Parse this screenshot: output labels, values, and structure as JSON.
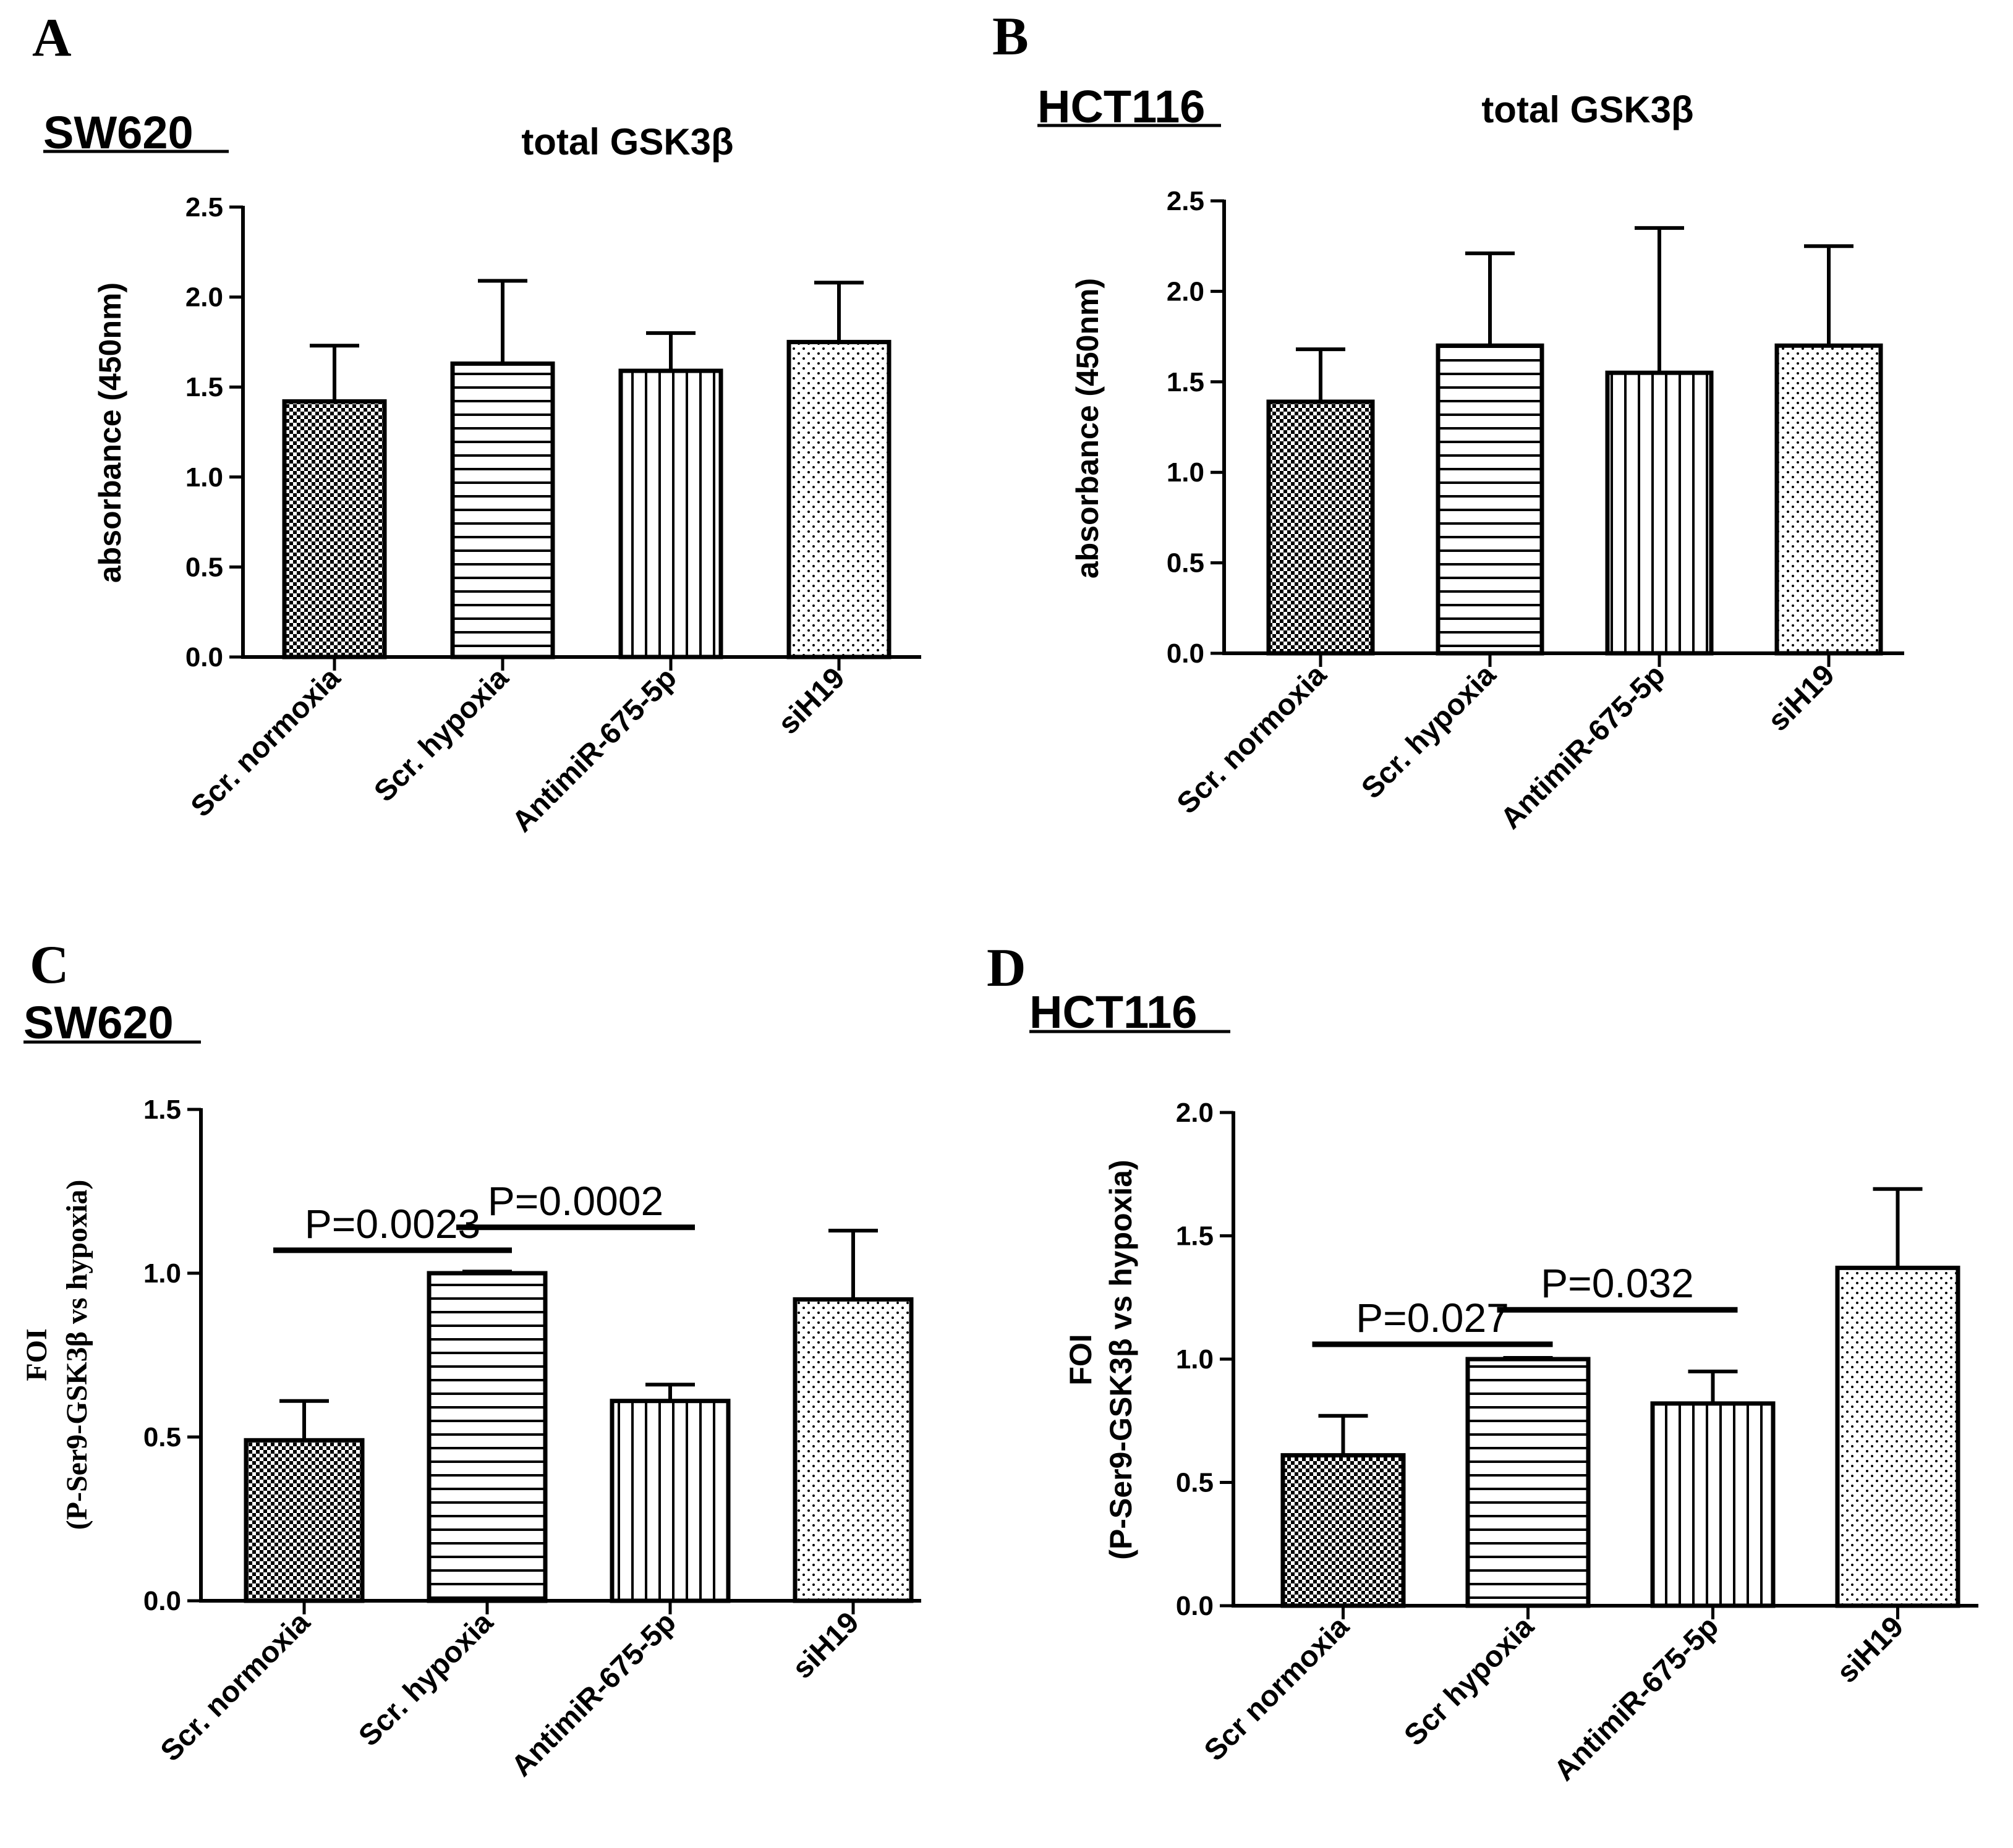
{
  "chart_data": [
    {
      "panel": "A",
      "type": "bar",
      "cell_line": "SW620",
      "title": "total GSK3β",
      "ylabel": "absorbance (450nm)",
      "ylim": [
        0,
        2.5
      ],
      "yticks": [
        "0.0",
        "0.5",
        "1.0",
        "1.5",
        "2.0",
        "2.5"
      ],
      "categories": [
        "Scr. normoxia",
        "Scr. hypoxia",
        "AntimiR-675-5p",
        "siH19"
      ],
      "values": [
        1.42,
        1.63,
        1.59,
        1.75
      ],
      "error_upper": [
        0.31,
        0.46,
        0.21,
        0.33
      ],
      "patterns": [
        "checker",
        "hlines",
        "vlines",
        "dots"
      ],
      "significance": []
    },
    {
      "panel": "B",
      "type": "bar",
      "cell_line": "HCT116",
      "title": "total GSK3β",
      "ylabel": "absorbance (450nm)",
      "ylim": [
        0,
        2.5
      ],
      "yticks": [
        "0.0",
        "0.5",
        "1.0",
        "1.5",
        "2.0",
        "2.5"
      ],
      "categories": [
        "Scr. normoxia",
        "Scr. hypoxia",
        "AntimiR-675-5p",
        "siH19"
      ],
      "values": [
        1.39,
        1.7,
        1.55,
        1.7
      ],
      "error_upper": [
        0.29,
        0.51,
        0.8,
        0.55
      ],
      "patterns": [
        "checker",
        "hlines",
        "vlines",
        "dots"
      ],
      "significance": []
    },
    {
      "panel": "C",
      "type": "bar",
      "cell_line": "SW620",
      "title": "",
      "ylabel_line1": "FOI",
      "ylabel_line2": "(P-Ser9-GSK3β vs hypoxia)",
      "ylim": [
        0,
        1.5
      ],
      "yticks": [
        "0.0",
        "0.5",
        "1.0",
        "1.5"
      ],
      "categories": [
        "Scr. normoxia",
        "Scr. hypoxia",
        "AntimiR-675-5p",
        "siH19"
      ],
      "values": [
        0.49,
        1.0,
        0.61,
        0.92
      ],
      "error_upper": [
        0.12,
        0.005,
        0.05,
        0.21
      ],
      "patterns": [
        "checker",
        "hlines",
        "vlines",
        "dots"
      ],
      "significance": [
        {
          "from": 0,
          "to": 1,
          "y": 1.07,
          "label": "P=0.0023"
        },
        {
          "from": 1,
          "to": 2,
          "y": 1.14,
          "label": "P=0.0002"
        }
      ]
    },
    {
      "panel": "D",
      "type": "bar",
      "cell_line": "HCT116",
      "title": "",
      "ylabel_line1": "FOI",
      "ylabel_line2": "(P-Ser9-GSK3β vs hypoxia)",
      "ylim": [
        0,
        2.0
      ],
      "yticks": [
        "0.0",
        "0.5",
        "1.0",
        "1.5",
        "2.0"
      ],
      "categories": [
        "Scr normoxia",
        "Scr hypoxia",
        "AntimiR-675-5p",
        "siH19"
      ],
      "values": [
        0.61,
        1.0,
        0.82,
        1.37
      ],
      "error_upper": [
        0.16,
        0.005,
        0.13,
        0.32
      ],
      "patterns": [
        "checker",
        "hlines",
        "vlines",
        "dots"
      ],
      "significance": [
        {
          "from": 0,
          "to": 1,
          "y": 1.06,
          "label": "P=0.027"
        },
        {
          "from": 1,
          "to": 2,
          "y": 1.2,
          "label": "P=0.032"
        }
      ]
    }
  ]
}
